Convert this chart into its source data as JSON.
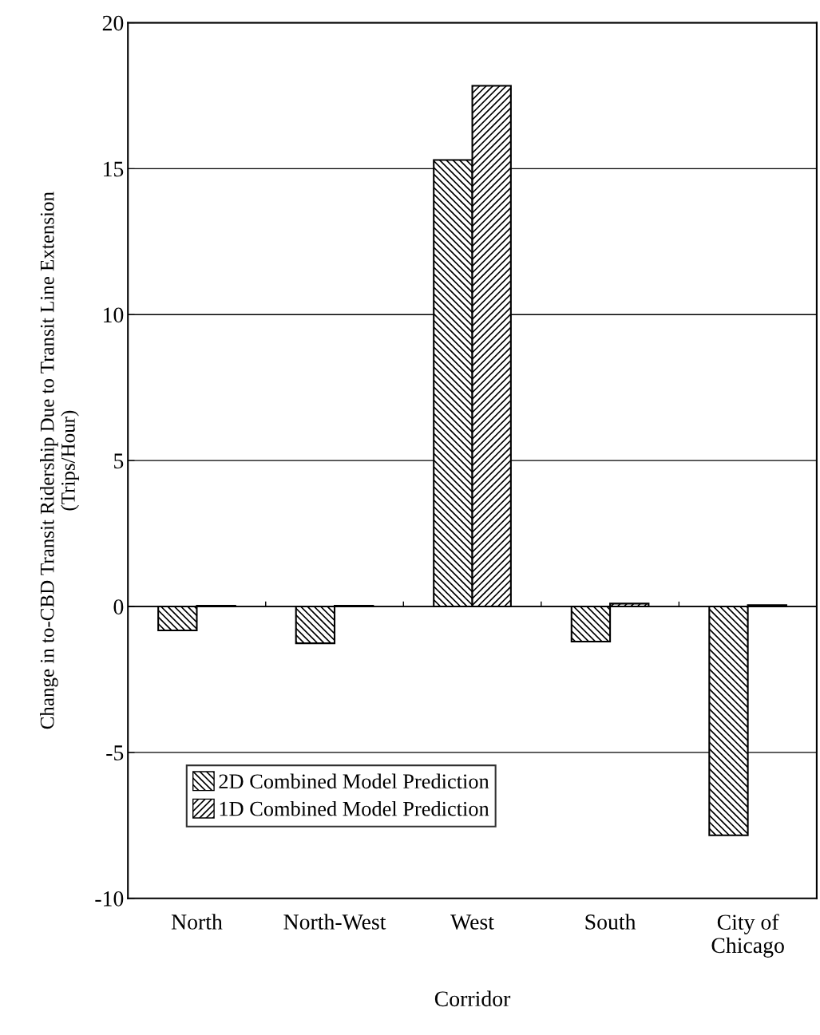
{
  "chart_data": {
    "type": "bar",
    "xlabel": "Corridor",
    "ylabel": "Change in to-CBD Transit Ridership Due to Transit Line Extension\n(Trips/Hour)",
    "categories": [
      "North",
      "North-West",
      "West",
      "South",
      "City of\nChicago"
    ],
    "series": [
      {
        "name": "2D Combined Model Prediction",
        "color": "#000000",
        "values": [
          -0.82,
          -1.26,
          15.3,
          -1.2,
          -7.84
        ]
      },
      {
        "name": "1D Combined Model Prediction",
        "color": "#000000",
        "values": [
          0.03,
          0.03,
          17.84,
          0.1,
          0.05
        ]
      }
    ],
    "ylim": [
      -10,
      20
    ],
    "yticks": [
      -10,
      -5,
      0,
      5,
      10,
      15,
      20
    ],
    "grid": "y",
    "legend": "bottom left"
  }
}
